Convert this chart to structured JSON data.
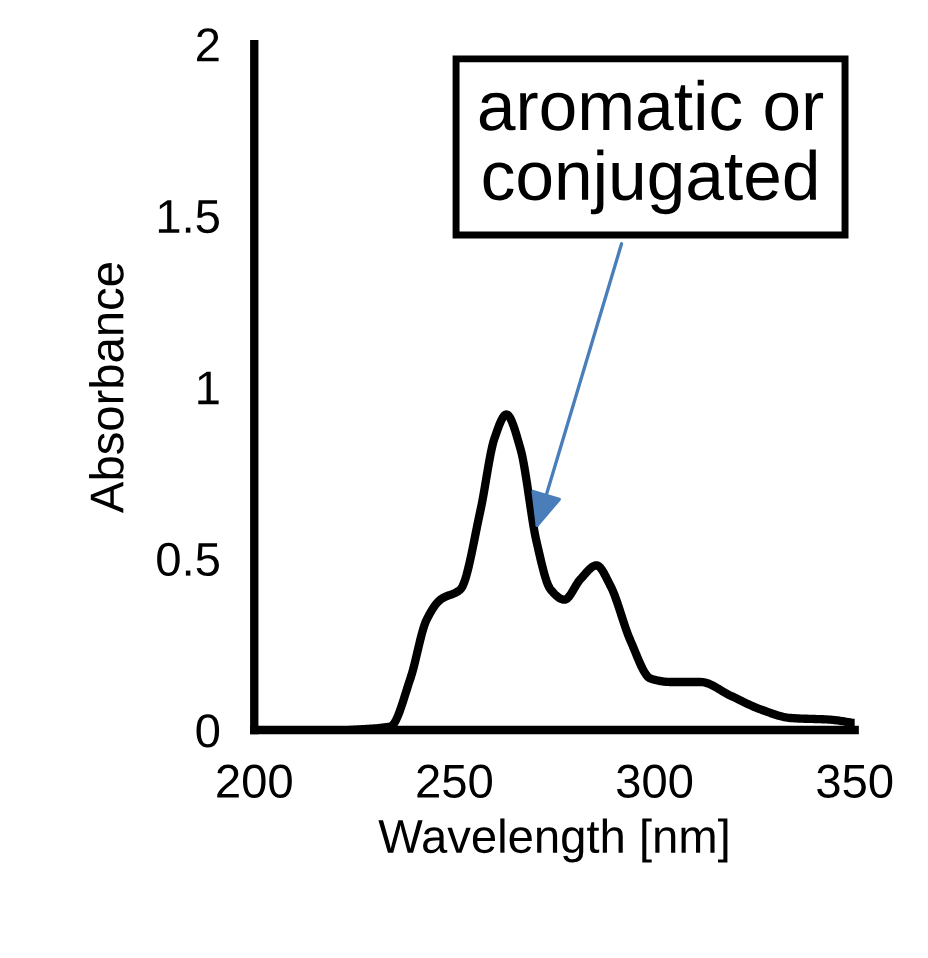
{
  "chart_data": {
    "type": "line",
    "xlabel": "Wavelength [nm]",
    "ylabel": "Absorbance",
    "x": [
      224,
      234,
      239,
      243,
      246.5,
      251.5,
      256.5,
      260,
      263,
      266.5,
      270.5,
      274,
      277.5,
      281.5,
      285.5,
      289,
      294,
      299,
      304,
      311.5,
      319,
      326.5,
      334,
      344,
      350
    ],
    "series": [
      {
        "color": "#000000",
        "values": [
          0,
          0.01,
          0.15,
          0.32,
          0.38,
          0.41,
          0.64,
          0.85,
          0.92,
          0.82,
          0.55,
          0.41,
          0.38,
          0.44,
          0.48,
          0.42,
          0.26,
          0.15,
          0.14,
          0.14,
          0.1,
          0.06,
          0.035,
          0.03,
          0.02
        ]
      }
    ],
    "xlim": [
      200,
      350
    ],
    "xticks": [
      200,
      250,
      300,
      350
    ],
    "ylim": [
      0,
      2
    ],
    "yticks": [
      0,
      0.5,
      1,
      1.5,
      2
    ],
    "grid": false,
    "legend": false,
    "marker": "none",
    "line_style": "solid",
    "annotations": [
      {
        "text": "aromatic or\nconjugated",
        "x": 270,
        "y": 0.57
      }
    ]
  }
}
